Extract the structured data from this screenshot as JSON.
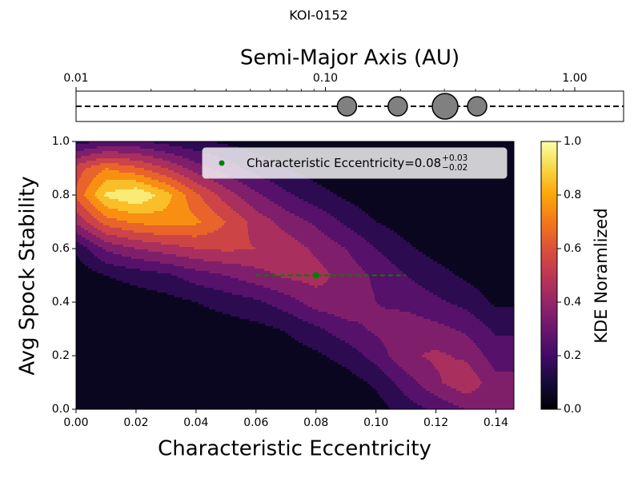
{
  "title": "KOI-0152",
  "chart_data": [
    {
      "type": "scatter",
      "xlabel": "Semi-Major Axis (AU)",
      "x": [
        0.122,
        0.195,
        0.302,
        0.406
      ],
      "sizes": [
        12,
        12,
        16,
        12
      ],
      "color": "#808080",
      "xscale": "log",
      "xlim": [
        0.01,
        1.57
      ],
      "xticks": [
        {
          "value": 0.01,
          "label": "0.01"
        },
        {
          "value": 0.1,
          "label": "0.10"
        },
        {
          "value": 1,
          "label": "1.00"
        }
      ]
    },
    {
      "type": "contour",
      "xlabel": "Characteristic Eccentricity",
      "ylabel": "Avg Spock Stability",
      "xlim": [
        0,
        0.146
      ],
      "ylim": [
        0,
        1
      ],
      "xticks": [
        {
          "value": 0,
          "label": "0.00"
        },
        {
          "value": 0.02,
          "label": "0.02"
        },
        {
          "value": 0.04,
          "label": "0.04"
        },
        {
          "value": 0.06,
          "label": "0.06"
        },
        {
          "value": 0.08,
          "label": "0.08"
        },
        {
          "value": 0.1,
          "label": "0.10"
        },
        {
          "value": 0.12,
          "label": "0.12"
        },
        {
          "value": 0.14,
          "label": "0.14"
        }
      ],
      "yticks": [
        {
          "value": 0,
          "label": "0.0"
        },
        {
          "value": 0.2,
          "label": "0.2"
        },
        {
          "value": 0.4,
          "label": "0.4"
        },
        {
          "value": 0.6,
          "label": "0.6"
        },
        {
          "value": 0.8,
          "label": "0.8"
        },
        {
          "value": 1,
          "label": "1.0"
        }
      ],
      "grid_x": [
        0,
        0.01,
        0.02,
        0.03,
        0.04,
        0.05,
        0.06,
        0.07,
        0.08,
        0.09,
        0.1,
        0.11,
        0.12,
        0.13,
        0.14
      ],
      "grid_y": [
        0,
        0.1,
        0.2,
        0.3,
        0.4,
        0.5,
        0.6,
        0.7,
        0.8,
        0.9,
        1
      ],
      "z": [
        [
          0,
          0,
          0,
          0,
          0,
          0,
          0,
          0,
          0,
          0.01,
          0.05,
          0.15,
          0.22,
          0.3,
          0.35
        ],
        [
          0,
          0,
          0,
          0,
          0,
          0,
          0,
          0.01,
          0.02,
          0.05,
          0.12,
          0.25,
          0.38,
          0.48,
          0.33
        ],
        [
          0,
          0,
          0,
          0,
          0.01,
          0.02,
          0.02,
          0.04,
          0.08,
          0.14,
          0.24,
          0.38,
          0.42,
          0.38,
          0.25
        ],
        [
          0,
          0,
          0,
          0.02,
          0.03,
          0.05,
          0.07,
          0.11,
          0.18,
          0.26,
          0.32,
          0.36,
          0.33,
          0.28,
          0.18
        ],
        [
          0,
          0.02,
          0.04,
          0.06,
          0.1,
          0.14,
          0.18,
          0.25,
          0.35,
          0.38,
          0.3,
          0.27,
          0.22,
          0.17,
          0.08
        ],
        [
          0.03,
          0.1,
          0.14,
          0.18,
          0.25,
          0.3,
          0.36,
          0.42,
          0.44,
          0.36,
          0.28,
          0.2,
          0.14,
          0.08,
          0.03
        ],
        [
          0.12,
          0.32,
          0.4,
          0.45,
          0.5,
          0.52,
          0.5,
          0.46,
          0.38,
          0.3,
          0.2,
          0.12,
          0.06,
          0.03,
          0
        ],
        [
          0.42,
          0.65,
          0.72,
          0.75,
          0.72,
          0.6,
          0.46,
          0.36,
          0.28,
          0.18,
          0.1,
          0.05,
          0.02,
          0,
          0
        ],
        [
          0.62,
          0.92,
          1.0,
          0.85,
          0.62,
          0.45,
          0.32,
          0.22,
          0.14,
          0.08,
          0.03,
          0.01,
          0,
          0,
          0
        ],
        [
          0.55,
          0.7,
          0.62,
          0.5,
          0.35,
          0.25,
          0.16,
          0.1,
          0.05,
          0.02,
          0,
          0,
          0,
          0,
          0
        ],
        [
          0.15,
          0.22,
          0.22,
          0.16,
          0.12,
          0.08,
          0.05,
          0.02,
          0,
          0,
          0,
          0,
          0,
          0,
          0
        ]
      ],
      "levels": [
        0,
        0.1,
        0.2,
        0.3,
        0.4,
        0.5,
        0.6,
        0.7,
        0.8,
        0.9,
        1.0
      ],
      "colormap": "inferno",
      "colorbar": {
        "label": "KDE Noramlized",
        "lim": [
          0,
          1
        ],
        "ticks": [
          {
            "value": 0,
            "label": "0.0"
          },
          {
            "value": 0.2,
            "label": "0.2"
          },
          {
            "value": 0.4,
            "label": "0.4"
          },
          {
            "value": 0.6,
            "label": "0.6"
          },
          {
            "value": 0.8,
            "label": "0.8"
          },
          {
            "value": 1,
            "label": "1.0"
          }
        ]
      },
      "point": {
        "name": "Characteristic Eccentricity=",
        "x": 0.08,
        "y": 0.5,
        "xerr_plus": 0.03,
        "xerr_minus": 0.02,
        "color": "green",
        "value_labels": {
          "x": "0.08",
          "xerr_plus": "+0.03",
          "xerr_minus": "−0.02"
        }
      },
      "legend": "upper right"
    }
  ]
}
